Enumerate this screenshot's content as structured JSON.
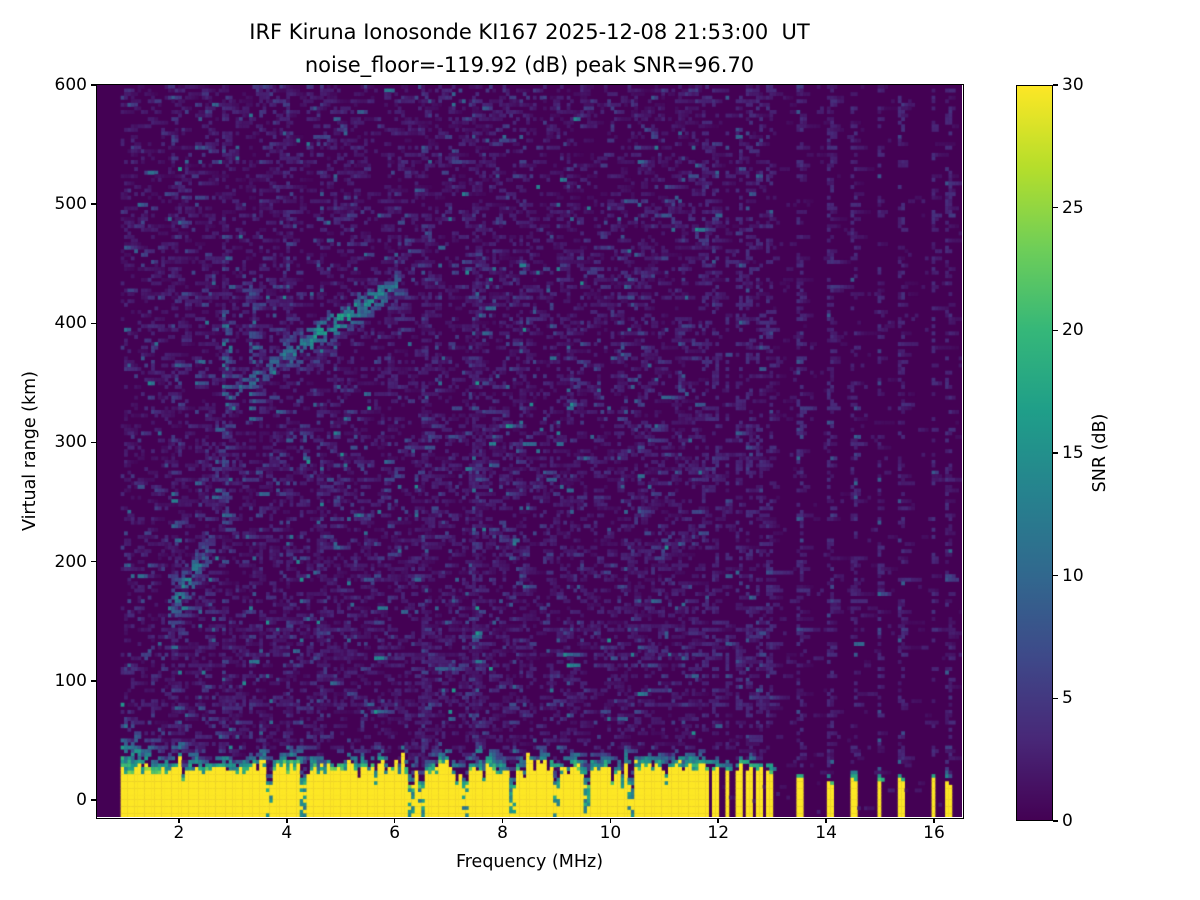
{
  "chart_data": {
    "type": "heatmap",
    "title": "IRF Kiruna Ionosonde KI167 2025-12-08 21:53:00  UT",
    "subtitle": "noise_floor=-119.92 (dB) peak SNR=96.70",
    "station": "IRF Kiruna Ionosonde KI167",
    "timestamp_ut": "2025-12-08 21:53:00 UT",
    "noise_floor_db": -119.92,
    "peak_snr_db": 96.7,
    "xlabel": "Frequency (MHz)",
    "ylabel": "Virtual range (km)",
    "xlim": [
      0.48,
      16.52
    ],
    "ylim": [
      -14.3,
      600
    ],
    "xticks": [
      2,
      4,
      6,
      8,
      10,
      12,
      14,
      16
    ],
    "yticks": [
      0,
      100,
      200,
      300,
      400,
      500,
      600
    ],
    "grid": false,
    "colorbar": {
      "label": "SNR (dB)",
      "min": 0,
      "max": 30,
      "ticks": [
        0,
        5,
        10,
        15,
        20,
        25,
        30
      ],
      "position": "right"
    },
    "colormap_stops": [
      [
        0.0,
        "#440154"
      ],
      [
        0.111,
        "#482878"
      ],
      [
        0.222,
        "#3e4989"
      ],
      [
        0.333,
        "#31688e"
      ],
      [
        0.444,
        "#26828e"
      ],
      [
        0.556,
        "#1f9e89"
      ],
      [
        0.667,
        "#35b779"
      ],
      [
        0.778,
        "#6ece58"
      ],
      [
        0.889,
        "#b5de2b"
      ],
      [
        1.0,
        "#fde725"
      ]
    ],
    "render": {
      "seed": 1337,
      "cols": 256,
      "rows": 205,
      "sweep_start_mhz": 0.93,
      "ground_band_end_mhz": 11.68,
      "ground_band": {
        "top_km_base": 20,
        "top_km_jitter": 10,
        "fringe_km": 15,
        "saturated_db": 30
      },
      "band_notches_mhz": [
        3.67,
        4.33,
        6.3,
        6.5,
        7.3,
        8.2,
        9.0,
        9.55,
        10.4
      ],
      "noise_density": 0.3,
      "noise_boost_columns_mhz": [
        1.9,
        2.85,
        3.5,
        4.0,
        4.62,
        5.28,
        5.9,
        6.55,
        7.5,
        8.35,
        9.25,
        10.15,
        10.9,
        11.3
      ],
      "interference_lines": [
        {
          "mhz": 11.75,
          "top_km": 26
        },
        {
          "mhz": 11.96,
          "top_km": 28
        },
        {
          "mhz": 12.17,
          "top_km": 26
        },
        {
          "mhz": 12.37,
          "top_km": 27
        },
        {
          "mhz": 12.56,
          "top_km": 26
        },
        {
          "mhz": 12.75,
          "top_km": 27
        },
        {
          "mhz": 12.93,
          "top_km": 24
        },
        {
          "mhz": 13.52,
          "top_km": 19
        },
        {
          "mhz": 14.1,
          "top_km": 16
        },
        {
          "mhz": 14.5,
          "top_km": 18
        },
        {
          "mhz": 14.98,
          "top_km": 15
        },
        {
          "mhz": 15.4,
          "top_km": 17
        },
        {
          "mhz": 15.98,
          "top_km": 22
        },
        {
          "mhz": 16.28,
          "top_km": 13
        }
      ],
      "echo_traces": [
        {
          "name": "f-region-main",
          "f0": 3.95,
          "f1": 6.05,
          "h0": 372,
          "h1": 434,
          "width_km": 9,
          "prob": 0.62,
          "peak_db": 16,
          "mid": 4.95,
          "mid_spread": 1.6
        },
        {
          "name": "f-region-lead",
          "f0": 3.08,
          "f1": 4.0,
          "h0": 344,
          "h1": 373,
          "width_km": 8,
          "prob": 0.3,
          "peak_db": 9
        },
        {
          "name": "e-region",
          "f0": 1.78,
          "f1": 2.52,
          "h0": 158,
          "h1": 205,
          "width_km": 12,
          "prob": 0.55,
          "peak_db": 13,
          "mid": 2.12,
          "mid_spread": 0.55
        }
      ],
      "spread_blocks": [
        {
          "f0": 2.8,
          "f1": 2.97,
          "h0": 328,
          "h1": 412,
          "prob": 0.4,
          "v0": 4,
          "v1": 13
        },
        {
          "f0": 3.27,
          "f1": 3.44,
          "h0": 318,
          "h1": 428,
          "prob": 0.3,
          "v0": 3.5,
          "v1": 11
        },
        {
          "f0": 2.58,
          "f1": 2.72,
          "h0": 238,
          "h1": 288,
          "prob": 0.28,
          "v0": 3,
          "v1": 9
        },
        {
          "f0": 2.82,
          "f1": 2.95,
          "h0": 230,
          "h1": 330,
          "prob": 0.2,
          "v0": 3,
          "v1": 8
        }
      ]
    }
  }
}
